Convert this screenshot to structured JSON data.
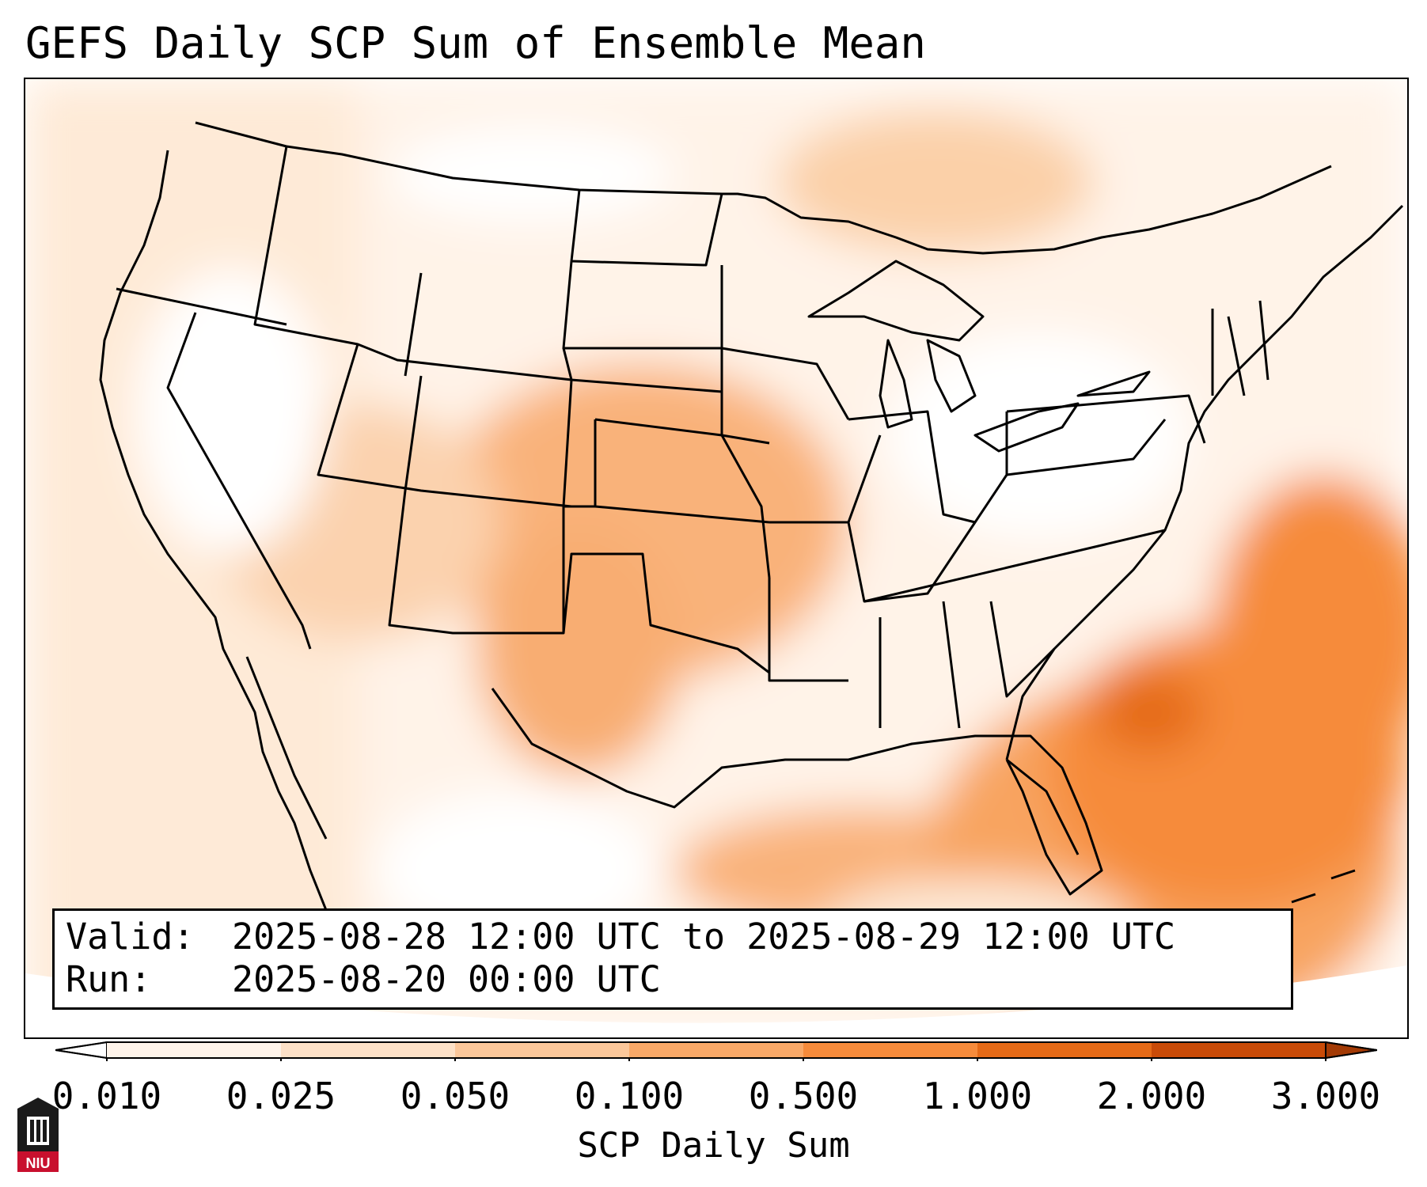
{
  "title": "GEFS Daily SCP Sum of Ensemble Mean",
  "info": {
    "valid_key": "Valid:",
    "valid_value": "2025-08-28 12:00 UTC to 2025-08-29 12:00 UTC",
    "run_key": "Run:",
    "run_value": "2025-08-20 00:00 UTC"
  },
  "colorbar": {
    "label": "SCP Daily Sum",
    "ticks": [
      "0.010",
      "0.025",
      "0.050",
      "0.100",
      "0.500",
      "1.000",
      "2.000",
      "3.000"
    ],
    "colors": [
      "#fff4ea",
      "#fde1c7",
      "#fbc79a",
      "#f9a968",
      "#f68b3b",
      "#e56a17",
      "#c94b08"
    ],
    "extend": "both"
  },
  "logo": {
    "text": "NIU",
    "icon": "niu-logo"
  }
}
